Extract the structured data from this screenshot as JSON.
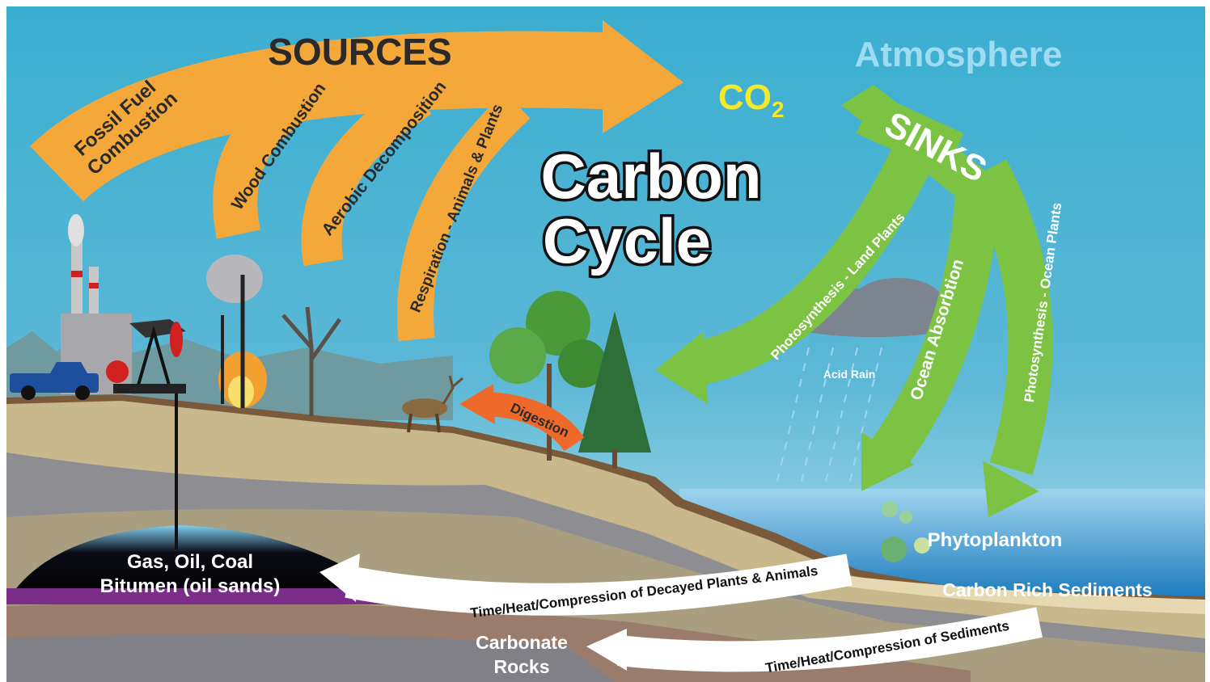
{
  "title": [
    "Carbon",
    "Cycle"
  ],
  "atmosphere": "Atmosphere",
  "co2": {
    "formula": "CO",
    "subscript": "2"
  },
  "sources": {
    "label": "SOURCES",
    "fossil_fuel": [
      "Fossil Fuel",
      "Combustion"
    ],
    "wood": "Wood Combustion",
    "aerobic": "Aerobic Decomposition",
    "respiration": "Respiration - Animals & Plants"
  },
  "sinks": {
    "label": "SINKS",
    "land": "Photosynthesis - Land Plants",
    "ocean_absorption": "Ocean Absorbtion",
    "ocean_plants": "Photosynthesis - Ocean Plants"
  },
  "acid_rain": "Acid Rain",
  "digestion": "Digestion",
  "phytoplankton": "Phytoplankton",
  "sediments": "Carbon Rich Sediments",
  "fossil_reservoir": [
    "Gas, Oil, Coal",
    "Bitumen (oil sands)"
  ],
  "decay_process": "Time/Heat/Compression of Decayed Plants & Animals",
  "sediment_process": "Time/Heat/Compression of Sediments",
  "carbonate": [
    "Carbonate",
    "Rocks"
  ]
}
